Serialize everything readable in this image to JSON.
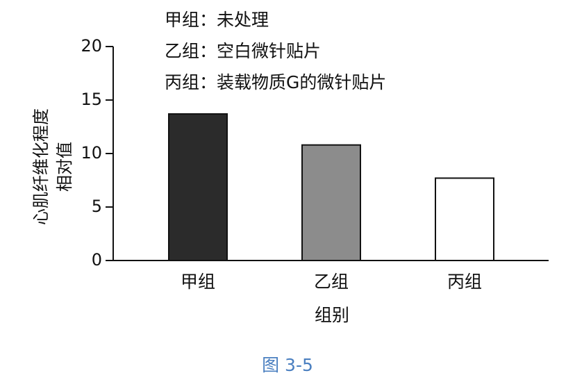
{
  "chart_data": {
    "type": "bar",
    "notes": [
      "甲组：未处理",
      "乙组：空白微针贴片",
      "丙组：装载物质G的微针贴片"
    ],
    "y_label": [
      "心肌纤维化程度",
      "相对值"
    ],
    "x_label": "组别",
    "caption": "图 3-5",
    "categories": [
      "甲组",
      "乙组",
      "丙组"
    ],
    "values": [
      13.7,
      10.8,
      7.7
    ],
    "colors": [
      "#2b2b2b",
      "#8c8c8c",
      "#ffffff"
    ],
    "ylim": [
      0,
      20
    ],
    "yticks": [
      0,
      5,
      10,
      15,
      20
    ],
    "grid": false
  }
}
